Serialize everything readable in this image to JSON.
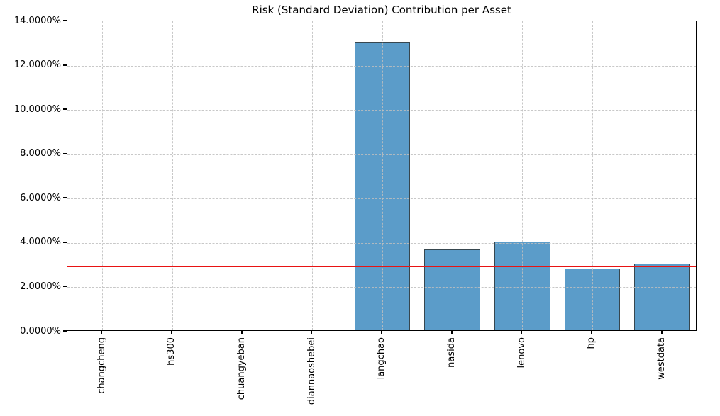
{
  "chart_data": {
    "type": "bar",
    "title": "Risk (Standard Deviation) Contribution per Asset",
    "xlabel": "",
    "ylabel": "",
    "categories": [
      "changcheng",
      "hs300",
      "chuangyeban",
      "diannaoshebei",
      "langchao",
      "nasida",
      "lenovo",
      "hp",
      "westdata"
    ],
    "values": [
      0.0,
      0.0,
      0.0,
      0.0,
      13.0,
      3.63,
      4.0,
      2.77,
      3.02
    ],
    "value_unit": "percent",
    "ylim": [
      0,
      14
    ],
    "ytick_values": [
      0,
      2,
      4,
      6,
      8,
      10,
      12,
      14
    ],
    "ytick_labels": [
      "0.0000%",
      "2.0000%",
      "4.0000%",
      "6.0000%",
      "8.0000%",
      "10.0000%",
      "12.0000%",
      "14.0000%"
    ],
    "reference_line": {
      "value": 2.94,
      "color": "#e81313"
    },
    "grid": "both-dashed",
    "legend": null,
    "bar_color": "#5b9cc9",
    "bar_edge_color": "#37474f",
    "x_labels_rotation_deg": 90
  }
}
